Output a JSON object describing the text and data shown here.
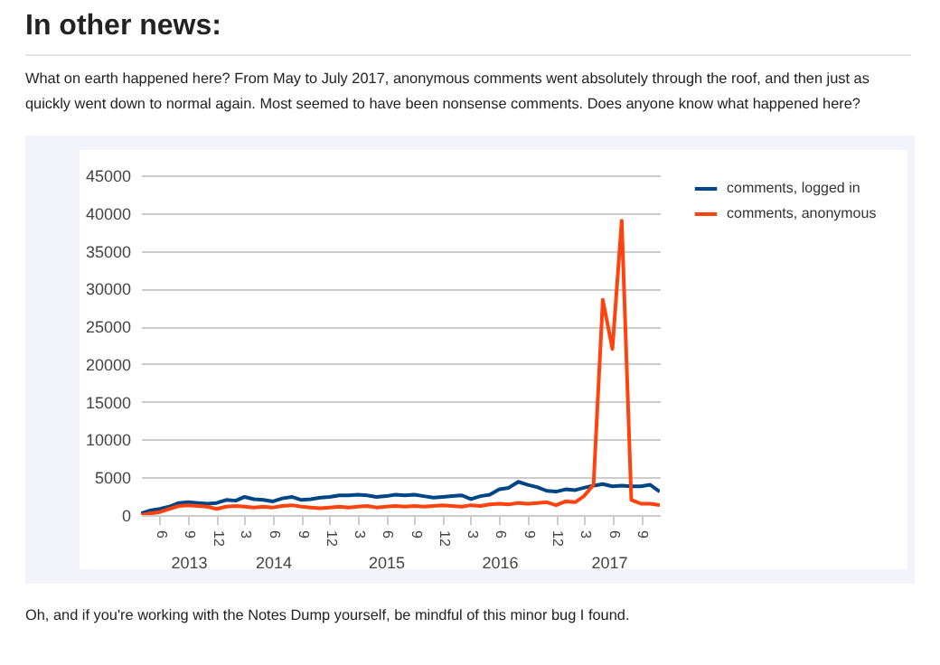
{
  "chart_data": {
    "type": "line",
    "title": "In other news:",
    "subtitle": "What on earth happened here? From May to July 2017, anonymous comments went absolutely through the roof, and then just as quickly went down to normal again. Most seemed to have been nonsense comments. Does anyone know what happened here?",
    "annotations": [
      "Oh, and if you're working with the Notes Dump yourself, be mindful of this minor bug I found."
    ],
    "x": [
      "2013-04",
      "2013-05",
      "2013-06",
      "2013-07",
      "2013-08",
      "2013-09",
      "2013-10",
      "2013-11",
      "2013-12",
      "2014-01",
      "2014-02",
      "2014-03",
      "2014-04",
      "2014-05",
      "2014-06",
      "2014-07",
      "2014-08",
      "2014-09",
      "2014-10",
      "2014-11",
      "2014-12",
      "2015-01",
      "2015-02",
      "2015-03",
      "2015-04",
      "2015-05",
      "2015-06",
      "2015-07",
      "2015-08",
      "2015-09",
      "2015-10",
      "2015-11",
      "2015-12",
      "2016-01",
      "2016-02",
      "2016-03",
      "2016-04",
      "2016-05",
      "2016-06",
      "2016-07",
      "2016-08",
      "2016-09",
      "2016-10",
      "2016-11",
      "2016-12",
      "2017-01",
      "2017-02",
      "2017-03",
      "2017-04",
      "2017-05",
      "2017-06",
      "2017-07",
      "2017-08",
      "2017-09",
      "2017-10",
      "2017-11"
    ],
    "series": [
      {
        "name": "comments, logged in",
        "color": "#004586",
        "values": [
          200,
          600,
          800,
          1100,
          1600,
          1700,
          1600,
          1500,
          1600,
          2000,
          1900,
          2400,
          2100,
          2000,
          1800,
          2200,
          2400,
          2000,
          2100,
          2300,
          2400,
          2600,
          2600,
          2700,
          2600,
          2400,
          2500,
          2700,
          2600,
          2700,
          2500,
          2300,
          2400,
          2500,
          2600,
          2100,
          2500,
          2700,
          3400,
          3600,
          4400,
          4000,
          3700,
          3200,
          3100,
          3400,
          3300,
          3600,
          3900,
          4100,
          3800,
          3900,
          3800,
          3800,
          4000,
          3100
        ]
      },
      {
        "name": "comments, anonymous",
        "color": "#ff420e",
        "values": [
          0,
          200,
          400,
          800,
          1200,
          1300,
          1200,
          1100,
          800,
          1100,
          1200,
          1100,
          1000,
          1100,
          1000,
          1200,
          1300,
          1100,
          1000,
          900,
          1000,
          1100,
          1000,
          1100,
          1200,
          1000,
          1100,
          1200,
          1100,
          1200,
          1100,
          1200,
          1300,
          1200,
          1100,
          1300,
          1200,
          1400,
          1500,
          1400,
          1600,
          1500,
          1600,
          1700,
          1300,
          1800,
          1700,
          2500,
          4000,
          28500,
          22000,
          39000,
          2000,
          1500,
          1500,
          1300
        ]
      }
    ],
    "xlim": [
      "2013-04",
      "2017-11"
    ],
    "xticks": [
      {
        "value": "2013-06",
        "label": "6"
      },
      {
        "value": "2013-09",
        "label": "9"
      },
      {
        "value": "2013-12",
        "label": "12"
      },
      {
        "value": "2014-03",
        "label": "3"
      },
      {
        "value": "2014-06",
        "label": "6"
      },
      {
        "value": "2014-09",
        "label": "9"
      },
      {
        "value": "2014-12",
        "label": "12"
      },
      {
        "value": "2015-03",
        "label": "3"
      },
      {
        "value": "2015-06",
        "label": "6"
      },
      {
        "value": "2015-09",
        "label": "9"
      },
      {
        "value": "2015-12",
        "label": "12"
      },
      {
        "value": "2016-03",
        "label": "3"
      },
      {
        "value": "2016-06",
        "label": "6"
      },
      {
        "value": "2016-09",
        "label": "9"
      },
      {
        "value": "2016-12",
        "label": "12"
      },
      {
        "value": "2017-03",
        "label": "3"
      },
      {
        "value": "2017-06",
        "label": "6"
      },
      {
        "value": "2017-09",
        "label": "9"
      }
    ],
    "x2lim": [
      "2013-04",
      "2017-11"
    ],
    "x2ticks": [
      {
        "value": "2013-09",
        "label": "2013"
      },
      {
        "value": "2014-06",
        "label": "2014"
      },
      {
        "value": "2015-06",
        "label": "2015"
      },
      {
        "value": "2016-06",
        "label": "2016"
      },
      {
        "value": "2017-05-20",
        "label": "2017"
      }
    ],
    "ylim": [
      0,
      45000
    ],
    "yticks": [
      0,
      5000,
      10000,
      15000,
      20000,
      25000,
      30000,
      35000,
      40000,
      45000
    ],
    "grid": "y",
    "legend": "right"
  }
}
